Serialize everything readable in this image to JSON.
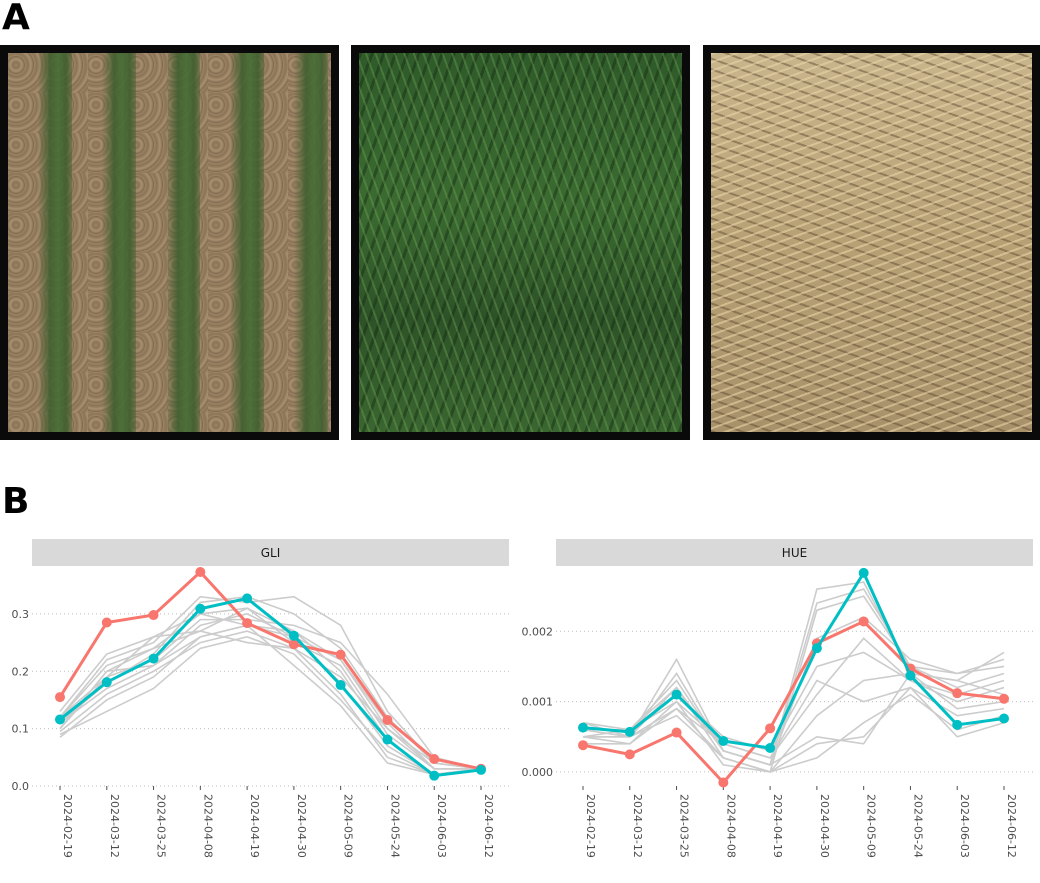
{
  "labels": {
    "panel_a": "A",
    "panel_b": "B"
  },
  "photos": [
    {
      "name": "emergence-plot-photo",
      "description_color": "#93795c"
    },
    {
      "name": "tillering-plot-photo",
      "description_color": "#2f5a2a"
    },
    {
      "name": "senescence-plot-photo",
      "description_color": "#c9b58c"
    }
  ],
  "colors": {
    "highlight_red": "#f8766d",
    "highlight_teal": "#00bfc4",
    "background_lines": "#cccccc",
    "strip": "#d9d9d9"
  },
  "chart_data": [
    {
      "type": "line",
      "title": "GLI",
      "xlabel": "",
      "ylabel": "",
      "x": [
        "2024-02-19",
        "2024-03-12",
        "2024-03-25",
        "2024-04-08",
        "2024-04-19",
        "2024-04-30",
        "2024-05-09",
        "2024-05-24",
        "2024-06-03",
        "2024-06-12"
      ],
      "ylim": [
        0.0,
        0.38
      ],
      "yticks": [
        "0.0",
        "0.1",
        "0.2",
        "0.3"
      ],
      "grid": true,
      "series": [
        {
          "color": "#f8766d",
          "values": [
            0.155,
            0.285,
            0.298,
            0.373,
            0.284,
            0.247,
            0.229,
            0.115,
            0.047,
            0.03
          ]
        },
        {
          "color": "#00bfc4",
          "values": [
            0.116,
            0.181,
            0.222,
            0.309,
            0.327,
            0.262,
            0.176,
            0.081,
            0.018,
            0.028
          ]
        }
      ],
      "background_series": [
        [
          0.1,
          0.2,
          0.24,
          0.3,
          0.31,
          0.27,
          0.22,
          0.1,
          0.03,
          0.03
        ],
        [
          0.12,
          0.22,
          0.25,
          0.33,
          0.32,
          0.33,
          0.28,
          0.13,
          0.04,
          0.03
        ],
        [
          0.09,
          0.13,
          0.17,
          0.24,
          0.26,
          0.23,
          0.15,
          0.06,
          0.02,
          0.03
        ],
        [
          0.11,
          0.17,
          0.21,
          0.28,
          0.3,
          0.26,
          0.18,
          0.07,
          0.02,
          0.03
        ],
        [
          0.13,
          0.23,
          0.26,
          0.27,
          0.25,
          0.24,
          0.19,
          0.1,
          0.04,
          0.03
        ],
        [
          0.085,
          0.15,
          0.19,
          0.26,
          0.28,
          0.21,
          0.14,
          0.04,
          0.02,
          0.03
        ],
        [
          0.1,
          0.19,
          0.22,
          0.29,
          0.29,
          0.28,
          0.25,
          0.16,
          0.05,
          0.03
        ],
        [
          0.12,
          0.21,
          0.24,
          0.27,
          0.31,
          0.25,
          0.21,
          0.09,
          0.03,
          0.03
        ],
        [
          0.095,
          0.16,
          0.2,
          0.25,
          0.27,
          0.24,
          0.16,
          0.05,
          0.02,
          0.03
        ],
        [
          0.11,
          0.18,
          0.23,
          0.32,
          0.33,
          0.3,
          0.24,
          0.12,
          0.04,
          0.03
        ],
        [
          0.1,
          0.2,
          0.21,
          0.26,
          0.28,
          0.27,
          0.2,
          0.08,
          0.02,
          0.03
        ],
        [
          0.12,
          0.19,
          0.26,
          0.3,
          0.28,
          0.26,
          0.22,
          0.11,
          0.03,
          0.03
        ]
      ]
    },
    {
      "type": "line",
      "title": "HUE",
      "xlabel": "",
      "ylabel": "",
      "x": [
        "2024-02-19",
        "2024-03-12",
        "2024-03-25",
        "2024-04-08",
        "2024-04-19",
        "2024-04-30",
        "2024-05-09",
        "2024-05-24",
        "2024-06-03",
        "2024-06-12"
      ],
      "ylim": [
        -0.0002,
        0.0029
      ],
      "yticks": [
        "0.000",
        "0.001",
        "0.002"
      ],
      "grid": true,
      "series": [
        {
          "color": "#f8766d",
          "values": [
            0.00038,
            0.00025,
            0.00056,
            -0.00015,
            0.00062,
            0.00183,
            0.00214,
            0.00147,
            0.00112,
            0.00104
          ]
        },
        {
          "color": "#00bfc4",
          "values": [
            0.00063,
            0.00057,
            0.0011,
            0.00044,
            0.00034,
            0.00176,
            0.00283,
            0.00137,
            0.00067,
            0.00076
          ]
        }
      ],
      "background_series": [
        [
          0.0006,
          0.0005,
          0.0016,
          0.0003,
          0.0001,
          0.0026,
          0.0027,
          0.0014,
          0.0013,
          0.0017
        ],
        [
          0.0005,
          0.0006,
          0.0012,
          0.0002,
          0.0,
          0.0023,
          0.0025,
          0.0015,
          0.0014,
          0.0016
        ],
        [
          0.0007,
          0.0005,
          0.0009,
          0.0004,
          0.0002,
          0.0011,
          0.0019,
          0.0013,
          0.001,
          0.0012
        ],
        [
          0.0004,
          0.0004,
          0.001,
          0.0001,
          0.0,
          0.0004,
          0.0005,
          0.0012,
          0.0008,
          0.0009
        ],
        [
          0.0006,
          0.0006,
          0.0013,
          0.0003,
          0.0001,
          0.0019,
          0.0022,
          0.0016,
          0.0014,
          0.0015
        ],
        [
          0.0005,
          0.0005,
          0.0008,
          0.0002,
          0.0,
          0.0008,
          0.0013,
          0.0014,
          0.0009,
          0.001
        ],
        [
          0.0007,
          0.0006,
          0.0011,
          0.0005,
          0.0003,
          0.0015,
          0.0017,
          0.0013,
          0.0011,
          0.0013
        ],
        [
          0.0005,
          0.0004,
          0.0009,
          0.0002,
          0.0,
          0.0002,
          0.0007,
          0.0011,
          0.0006,
          0.0008
        ],
        [
          0.0006,
          0.0005,
          0.0012,
          0.0003,
          0.0001,
          0.0024,
          0.0026,
          0.0015,
          0.0012,
          0.0014
        ],
        [
          0.0006,
          0.0006,
          0.001,
          0.0004,
          0.0002,
          0.0013,
          0.001,
          0.0012,
          0.0005,
          0.0007
        ],
        [
          0.0005,
          0.0005,
          0.0014,
          0.0003,
          0.0001,
          0.0005,
          0.0004,
          0.0014,
          0.0013,
          0.0011
        ]
      ]
    }
  ]
}
